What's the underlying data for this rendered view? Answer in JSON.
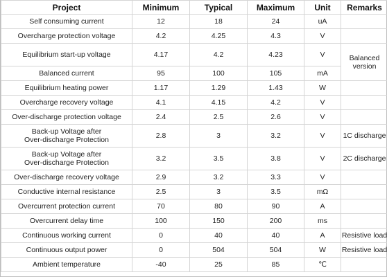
{
  "table": {
    "headers": [
      "Project",
      "Minimum",
      "Typical",
      "Maximum",
      "Unit",
      "Remarks"
    ],
    "rows": [
      {
        "project": [
          "Self consuming current"
        ],
        "min": "12",
        "typ": "18",
        "max": "24",
        "unit": "uA"
      },
      {
        "project": [
          "Overcharge protection voltage"
        ],
        "min": "4.2",
        "typ": "4.25",
        "max": "4.3",
        "unit": "V"
      },
      {
        "project": [
          "Equilibrium start-up voltage"
        ],
        "min": "4.17",
        "typ": "4.2",
        "max": "4.23",
        "unit": "V"
      },
      {
        "project": [
          "Balanced current"
        ],
        "min": "95",
        "typ": "100",
        "max": "105",
        "unit": "mA"
      },
      {
        "project": [
          "Equilibrium heating power"
        ],
        "min": "1.17",
        "typ": "1.29",
        "max": "1.43",
        "unit": "W"
      },
      {
        "project": [
          "Overcharge recovery voltage"
        ],
        "min": "4.1",
        "typ": "4.15",
        "max": "4.2",
        "unit": "V"
      },
      {
        "project": [
          "Over-discharge protection voltage"
        ],
        "min": "2.4",
        "typ": "2.5",
        "max": "2.6",
        "unit": "V"
      },
      {
        "project": [
          "Back-up Voltage after",
          "Over-discharge Protection"
        ],
        "min": "2.8",
        "typ": "3",
        "max": "3.2",
        "unit": "V"
      },
      {
        "project": [
          "Back-up Voltage after",
          "Over-discharge Protection"
        ],
        "min": "3.2",
        "typ": "3.5",
        "max": "3.8",
        "unit": "V"
      },
      {
        "project": [
          "Over-discharge recovery voltage"
        ],
        "min": "2.9",
        "typ": "3.2",
        "max": "3.3",
        "unit": "V"
      },
      {
        "project": [
          "Conductive internal resistance"
        ],
        "min": "2.5",
        "typ": "3",
        "max": "3.5",
        "unit": "mΩ"
      },
      {
        "project": [
          "Overcurrent protection current"
        ],
        "min": "70",
        "typ": "80",
        "max": "90",
        "unit": "A"
      },
      {
        "project": [
          "Overcurrent delay time"
        ],
        "min": "100",
        "typ": "150",
        "max": "200",
        "unit": "ms"
      },
      {
        "project": [
          "Continuous working current"
        ],
        "min": "0",
        "typ": "40",
        "max": "40",
        "unit": "A"
      },
      {
        "project": [
          "Continuous output power"
        ],
        "min": "0",
        "typ": "504",
        "max": "504",
        "unit": "W"
      },
      {
        "project": [
          "Ambient temperature"
        ],
        "min": "-40",
        "typ": "25",
        "max": "85",
        "unit": "℃"
      }
    ],
    "remarks": {
      "balanced_version": [
        "Balanced",
        "version"
      ],
      "discharge_1c": "1C discharge",
      "discharge_2c": "2C discharge",
      "resistive_load_1": "Resistive load",
      "resistive_load_2": "Resistive load"
    }
  }
}
